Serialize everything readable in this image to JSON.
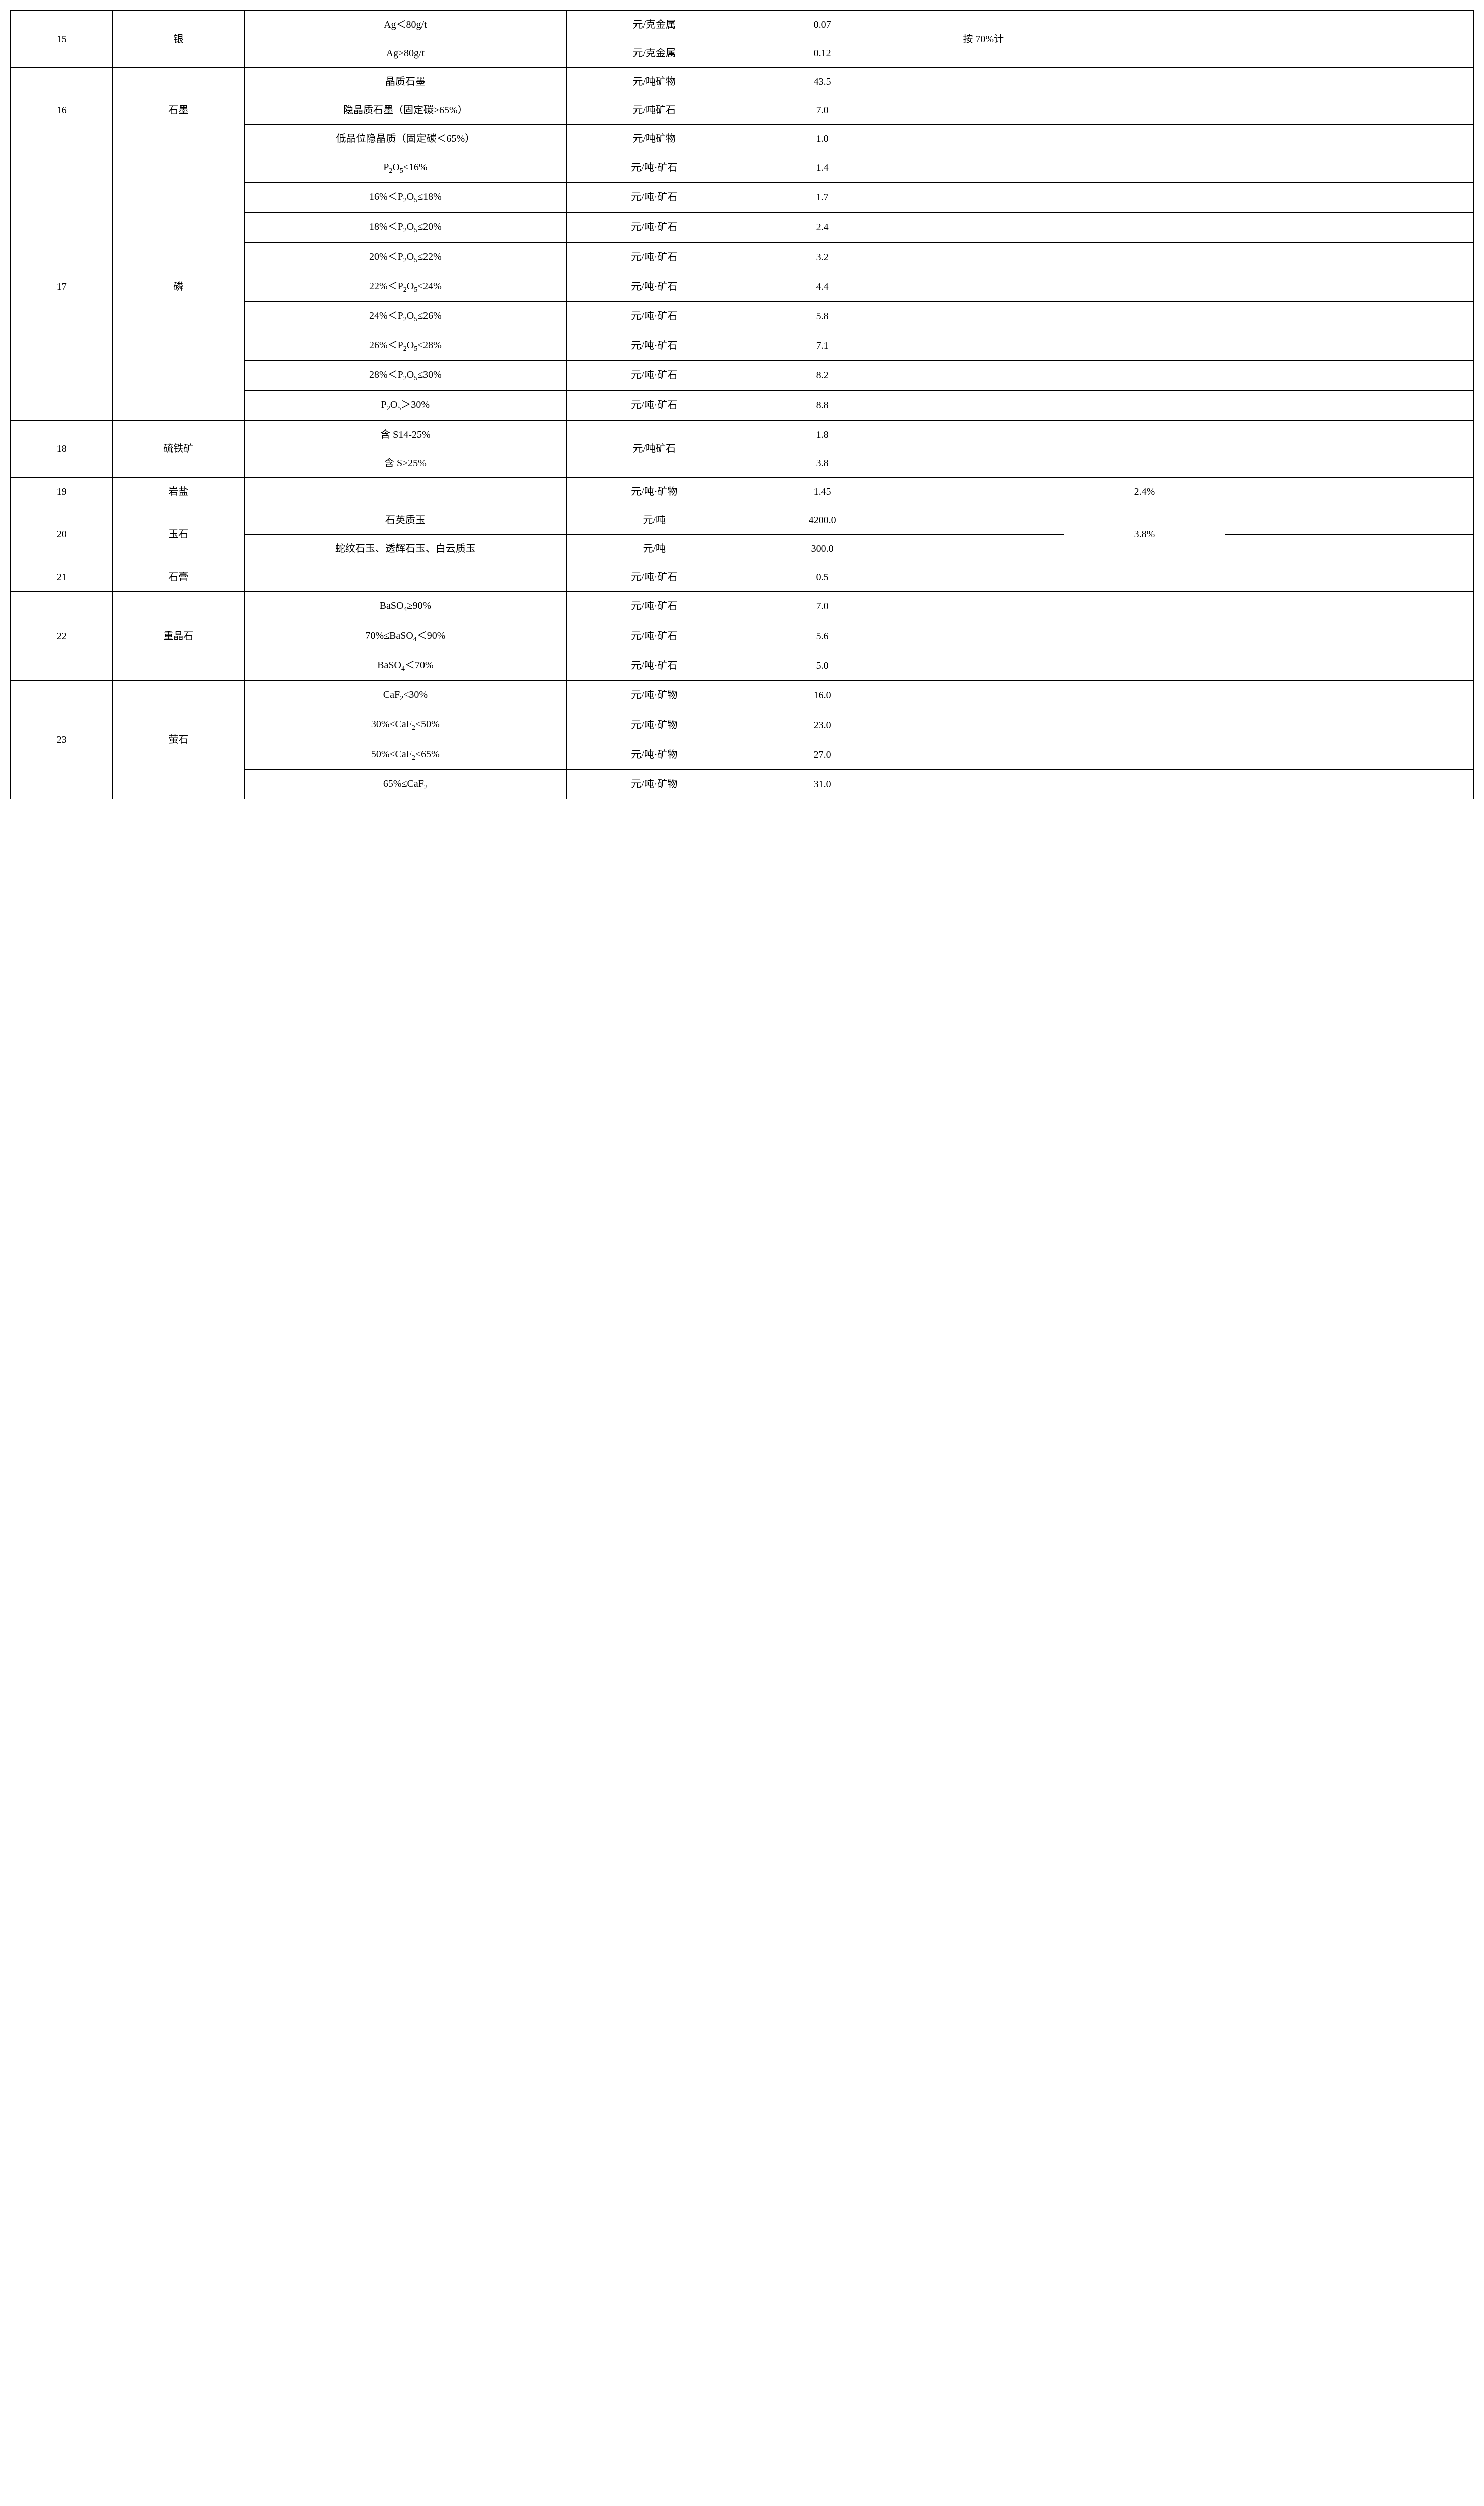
{
  "rows": [
    {
      "idx": "15",
      "name": "银",
      "spec": "Ag＜80g/t",
      "unit": "元/克金属",
      "val": "0.07",
      "e": "按 70%计",
      "f": "",
      "g": ""
    },
    {
      "spec": "Ag≥80g/t",
      "unit": "元/克金属",
      "val": "0.12"
    },
    {
      "idx": "16",
      "name": "石墨",
      "spec": "晶质石墨",
      "unit": "元/吨矿物",
      "val": "43.5",
      "e": "",
      "f": "",
      "g": ""
    },
    {
      "spec": "隐晶质石墨（固定碳≥65%）",
      "unit": "元/吨矿石",
      "val": "7.0",
      "e": "",
      "f": "",
      "g": ""
    },
    {
      "spec": "低品位隐晶质（固定碳＜65%）",
      "unit": "元/吨矿物",
      "val": "1.0",
      "e": "",
      "f": "",
      "g": ""
    },
    {
      "idx": "17",
      "name": "磷",
      "spec": "P₂O₅≤16%",
      "unit": "元/吨·矿石",
      "val": "1.4",
      "e": "",
      "f": "",
      "g": ""
    },
    {
      "spec": "16%＜P₂O₅≤18%",
      "unit": "元/吨·矿石",
      "val": "1.7",
      "e": "",
      "f": "",
      "g": ""
    },
    {
      "spec": "18%＜P₂O₅≤20%",
      "unit": "元/吨·矿石",
      "val": "2.4",
      "e": "",
      "f": "",
      "g": ""
    },
    {
      "spec": "20%＜P₂O₅≤22%",
      "unit": "元/吨·矿石",
      "val": "3.2",
      "e": "",
      "f": "",
      "g": ""
    },
    {
      "spec": "22%＜P₂O₅≤24%",
      "unit": "元/吨·矿石",
      "val": "4.4",
      "e": "",
      "f": "",
      "g": ""
    },
    {
      "spec": "24%＜P₂O₅≤26%",
      "unit": "元/吨·矿石",
      "val": "5.8",
      "e": "",
      "f": "",
      "g": ""
    },
    {
      "spec": "26%＜P₂O₅≤28%",
      "unit": "元/吨·矿石",
      "val": "7.1",
      "e": "",
      "f": "",
      "g": ""
    },
    {
      "spec": "28%＜P₂O₅≤30%",
      "unit": "元/吨·矿石",
      "val": "8.2",
      "e": "",
      "f": "",
      "g": ""
    },
    {
      "spec": "P₂O₅＞30%",
      "unit": "元/吨·矿石",
      "val": "8.8",
      "e": "",
      "f": "",
      "g": ""
    },
    {
      "idx": "18",
      "name": "硫铁矿",
      "spec": "含 S14-25%",
      "unit": "元/吨矿石",
      "val": "1.8",
      "e": "",
      "f": "",
      "g": ""
    },
    {
      "spec": "含 S≥25%",
      "val": "3.8",
      "e": "",
      "f": "",
      "g": ""
    },
    {
      "idx": "19",
      "name": "岩盐",
      "spec": "",
      "unit": "元/吨·矿物",
      "val": "1.45",
      "e": "",
      "f": "2.4%",
      "g": ""
    },
    {
      "idx": "20",
      "name": "玉石",
      "spec": "石英质玉",
      "unit": "元/吨",
      "val": "4200.0",
      "e": "",
      "f": "3.8%",
      "g": ""
    },
    {
      "spec": "蛇纹石玉、透辉石玉、白云质玉",
      "unit": "元/吨",
      "val": "300.0",
      "e": "",
      "g": ""
    },
    {
      "idx": "21",
      "name": "石膏",
      "spec": "",
      "unit": "元/吨·矿石",
      "val": "0.5",
      "e": "",
      "f": "",
      "g": ""
    },
    {
      "idx": "22",
      "name": "重晶石",
      "spec": "BaSO₄≥90%",
      "unit": "元/吨·矿石",
      "val": "7.0",
      "e": "",
      "f": "",
      "g": ""
    },
    {
      "spec": "70%≤BaSO₄＜90%",
      "unit": "元/吨·矿石",
      "val": "5.6",
      "e": "",
      "f": "",
      "g": ""
    },
    {
      "spec": "BaSO₄＜70%",
      "unit": "元/吨·矿石",
      "val": "5.0",
      "e": "",
      "f": "",
      "g": ""
    },
    {
      "idx": "23",
      "name": "萤石",
      "spec": "CaF₂<30%",
      "unit": "元/吨·矿物",
      "val": "16.0",
      "e": "",
      "f": "",
      "g": ""
    },
    {
      "spec": "30%≤CaF₂<50%",
      "unit": "元/吨·矿物",
      "val": "23.0",
      "e": "",
      "f": "",
      "g": ""
    },
    {
      "spec": "50%≤CaF₂<65%",
      "unit": "元/吨·矿物",
      "val": "27.0",
      "e": "",
      "f": "",
      "g": ""
    },
    {
      "spec": "65%≤CaF₂",
      "unit": "元/吨·矿物",
      "val": "31.0",
      "e": "",
      "f": "",
      "g": ""
    }
  ],
  "style": {
    "font_family": "SimSun",
    "font_size_pt": 15,
    "border_color": "#000000",
    "background_color": "#ffffff",
    "text_color": "#000000",
    "column_widths_pct": [
      7,
      9,
      22,
      12,
      11,
      11,
      11,
      17
    ]
  }
}
